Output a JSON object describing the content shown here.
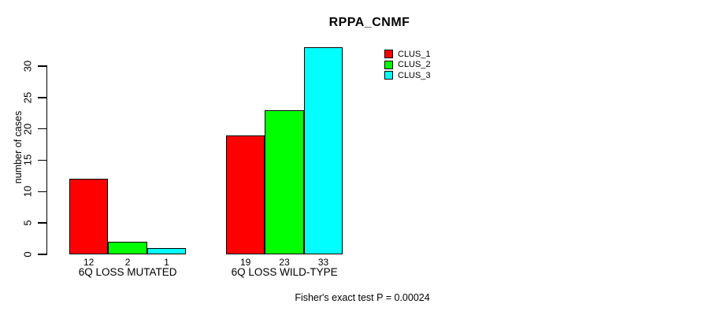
{
  "chart_data": {
    "type": "bar",
    "title": "RPPA_CNMF",
    "ylabel": "number of cases",
    "xlabel": "",
    "ylim": [
      0,
      33
    ],
    "yticks": [
      0,
      5,
      10,
      15,
      20,
      25,
      30
    ],
    "grid": false,
    "legend_position": "top-right",
    "categories": [
      "6Q LOSS MUTATED",
      "6Q LOSS WILD-TYPE"
    ],
    "series": [
      {
        "name": "CLUS_1",
        "color": "#ff0000",
        "values": [
          12,
          19
        ]
      },
      {
        "name": "CLUS_2",
        "color": "#00ff00",
        "values": [
          2,
          23
        ]
      },
      {
        "name": "CLUS_3",
        "color": "#00ffff",
        "values": [
          1,
          33
        ]
      }
    ],
    "bar_value_labels": [
      [
        "12",
        "2",
        "1"
      ],
      [
        "19",
        "23",
        "33"
      ]
    ],
    "annotation": "Fisher's exact test P = 0.00024"
  },
  "colors": {
    "background": "#ffffff",
    "text": "#000000",
    "axis": "#000000",
    "clus_1": "#ff0000",
    "clus_2": "#00ff00",
    "clus_3": "#00ffff"
  }
}
